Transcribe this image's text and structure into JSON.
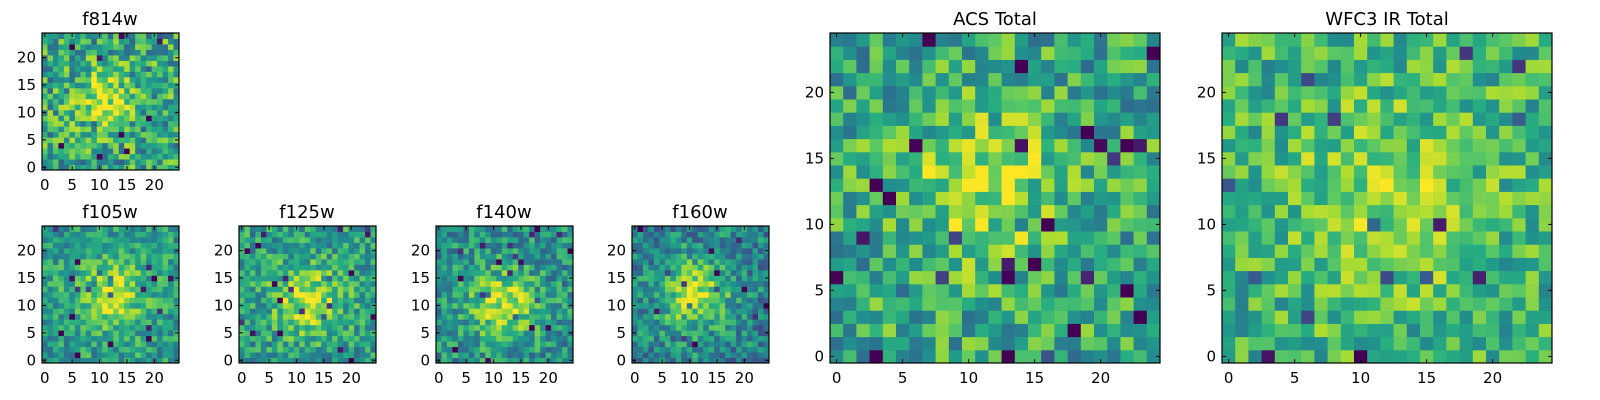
{
  "figure": {
    "colormap": "viridis",
    "colors": {
      "low": "#440154",
      "mid_low": "#3b528b",
      "mid": "#21918c",
      "mid_high": "#5ec962",
      "high": "#fde725",
      "frame": "#000000",
      "background": "#ffffff"
    }
  },
  "chart_data": [
    {
      "type": "heatmap",
      "id": "f814w",
      "title": "f814w",
      "grid": [
        25,
        25
      ],
      "xlim": [
        0,
        24
      ],
      "ylim": [
        0,
        24
      ],
      "xticks": [
        0,
        5,
        10,
        15,
        20
      ],
      "yticks": [
        0,
        5,
        10,
        15,
        20
      ],
      "source_center": [
        11,
        12
      ],
      "source_sigma": 3.5,
      "source_peak": 0.35,
      "base": 0.6,
      "noise": 0.28,
      "seed": 11
    },
    {
      "type": "heatmap",
      "id": "f105w",
      "title": "f105w",
      "grid": [
        25,
        25
      ],
      "xlim": [
        0,
        24
      ],
      "ylim": [
        0,
        24
      ],
      "xticks": [
        0,
        5,
        10,
        15,
        20
      ],
      "yticks": [
        0,
        5,
        10,
        15,
        20
      ],
      "source_center": [
        12,
        12
      ],
      "source_sigma": 4.5,
      "source_peak": 0.35,
      "base": 0.55,
      "noise": 0.2,
      "seed": 23
    },
    {
      "type": "heatmap",
      "id": "f125w",
      "title": "f125w",
      "grid": [
        25,
        25
      ],
      "xlim": [
        0,
        24
      ],
      "ylim": [
        0,
        24
      ],
      "xticks": [
        0,
        5,
        10,
        15,
        20
      ],
      "yticks": [
        0,
        5,
        10,
        15,
        20
      ],
      "source_center": [
        12,
        11
      ],
      "source_sigma": 4.5,
      "source_peak": 0.35,
      "base": 0.55,
      "noise": 0.22,
      "seed": 37
    },
    {
      "type": "heatmap",
      "id": "f140w",
      "title": "f140w",
      "grid": [
        25,
        25
      ],
      "xlim": [
        0,
        24
      ],
      "ylim": [
        0,
        24
      ],
      "xticks": [
        0,
        5,
        10,
        15,
        20
      ],
      "yticks": [
        0,
        5,
        10,
        15,
        20
      ],
      "source_center": [
        12,
        10
      ],
      "source_sigma": 4.5,
      "source_peak": 0.4,
      "base": 0.5,
      "noise": 0.22,
      "seed": 41
    },
    {
      "type": "heatmap",
      "id": "f160w",
      "title": "f160w",
      "grid": [
        25,
        25
      ],
      "xlim": [
        0,
        24
      ],
      "ylim": [
        0,
        24
      ],
      "xticks": [
        0,
        5,
        10,
        15,
        20
      ],
      "yticks": [
        0,
        5,
        10,
        15,
        20
      ],
      "source_center": [
        11,
        12
      ],
      "source_sigma": 4.5,
      "source_peak": 0.45,
      "base": 0.45,
      "noise": 0.22,
      "seed": 53
    },
    {
      "type": "heatmap",
      "id": "acs-total",
      "title": "ACS Total",
      "grid": [
        25,
        25
      ],
      "xlim": [
        0,
        24
      ],
      "ylim": [
        0,
        24
      ],
      "xticks": [
        0,
        5,
        10,
        15,
        20
      ],
      "yticks": [
        0,
        5,
        10,
        15,
        20
      ],
      "source_center": [
        11,
        13
      ],
      "source_sigma": 4,
      "source_peak": 0.3,
      "base": 0.6,
      "noise": 0.25,
      "seed": 67
    },
    {
      "type": "heatmap",
      "id": "wfc3-ir-total",
      "title": "WFC3 IR Total",
      "grid": [
        25,
        25
      ],
      "xlim": [
        0,
        24
      ],
      "ylim": [
        0,
        24
      ],
      "xticks": [
        0,
        5,
        10,
        15,
        20
      ],
      "yticks": [
        0,
        5,
        10,
        15,
        20
      ],
      "source_center": [
        12,
        12
      ],
      "source_sigma": 5,
      "source_peak": 0.2,
      "base": 0.65,
      "noise": 0.22,
      "seed": 79
    }
  ]
}
